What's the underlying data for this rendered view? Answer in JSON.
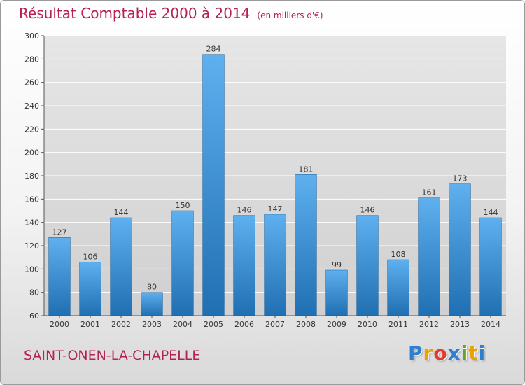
{
  "header": {
    "title": "Résultat Comptable 2000 à 2014",
    "subtitle": "(en milliers d'€)"
  },
  "footer": {
    "commune": "SAINT-ONEN-LA-CHAPELLE",
    "logo_letters": [
      "P",
      "r",
      "o",
      "x",
      "i",
      "t",
      "i"
    ],
    "logo_colors": [
      "#2f7fd0",
      "#e8a300",
      "#e23a2c",
      "#2f7fd0",
      "#6aa326",
      "#e8a300",
      "#2f7fd0"
    ]
  },
  "colors": {
    "bar_light": "#5fb0ef",
    "bar_dark": "#1f6fb2",
    "grid": "#ffffff",
    "axis": "#555555"
  },
  "chart_data": {
    "type": "bar",
    "title": "Résultat Comptable 2000 à 2014",
    "xlabel": "",
    "ylabel": "",
    "categories": [
      "2000",
      "2001",
      "2002",
      "2003",
      "2004",
      "2005",
      "2006",
      "2007",
      "2008",
      "2009",
      "2010",
      "2011",
      "2012",
      "2013",
      "2014"
    ],
    "values": [
      127,
      106,
      144,
      80,
      150,
      284,
      146,
      147,
      181,
      99,
      146,
      108,
      161,
      173,
      144
    ],
    "ylim": [
      60,
      300
    ],
    "yticks": [
      60,
      80,
      100,
      120,
      140,
      160,
      180,
      200,
      220,
      240,
      260,
      280,
      300
    ],
    "grid": true
  }
}
